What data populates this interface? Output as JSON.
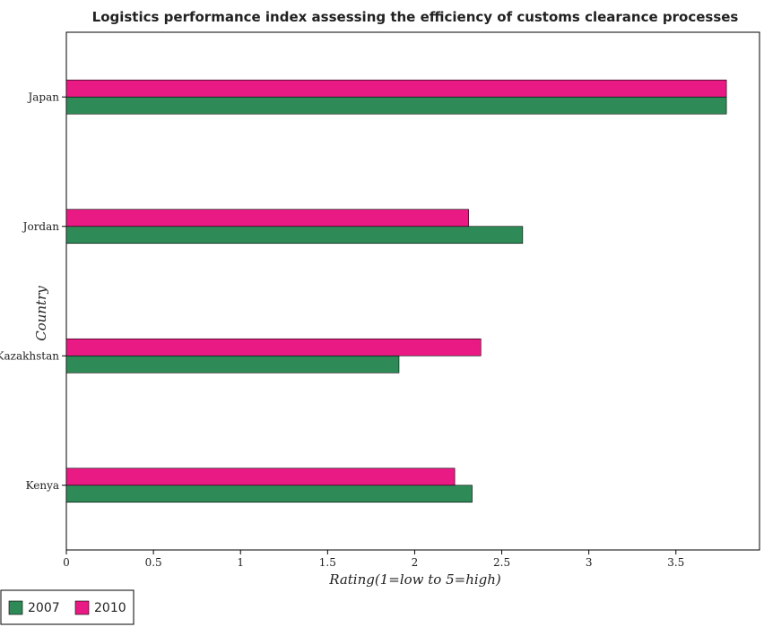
{
  "chart_data": {
    "type": "bar",
    "orientation": "horizontal",
    "title": "Logistics performance index assessing the efficiency of customs clearance processes",
    "xlabel": "Rating(1=low to 5=high)",
    "ylabel": "Country",
    "categories": [
      "Japan",
      "Jordan",
      "Kazakhstan",
      "Kenya"
    ],
    "series": [
      {
        "name": "2007",
        "color": "#2e8b57",
        "values": [
          3.79,
          2.62,
          1.91,
          2.33
        ]
      },
      {
        "name": "2010",
        "color": "#ea1a84",
        "values": [
          3.79,
          2.31,
          2.38,
          2.23
        ]
      }
    ],
    "xlim": [
      0,
      3.98
    ],
    "xticks": [
      0,
      0.5,
      1,
      1.5,
      2,
      2.5,
      3,
      3.5
    ],
    "xtick_labels": [
      "0",
      "0.5",
      "1",
      "1.5",
      "2",
      "2.5",
      "3",
      "3.5"
    ],
    "grid": false,
    "legend_position": "bottom-left"
  }
}
